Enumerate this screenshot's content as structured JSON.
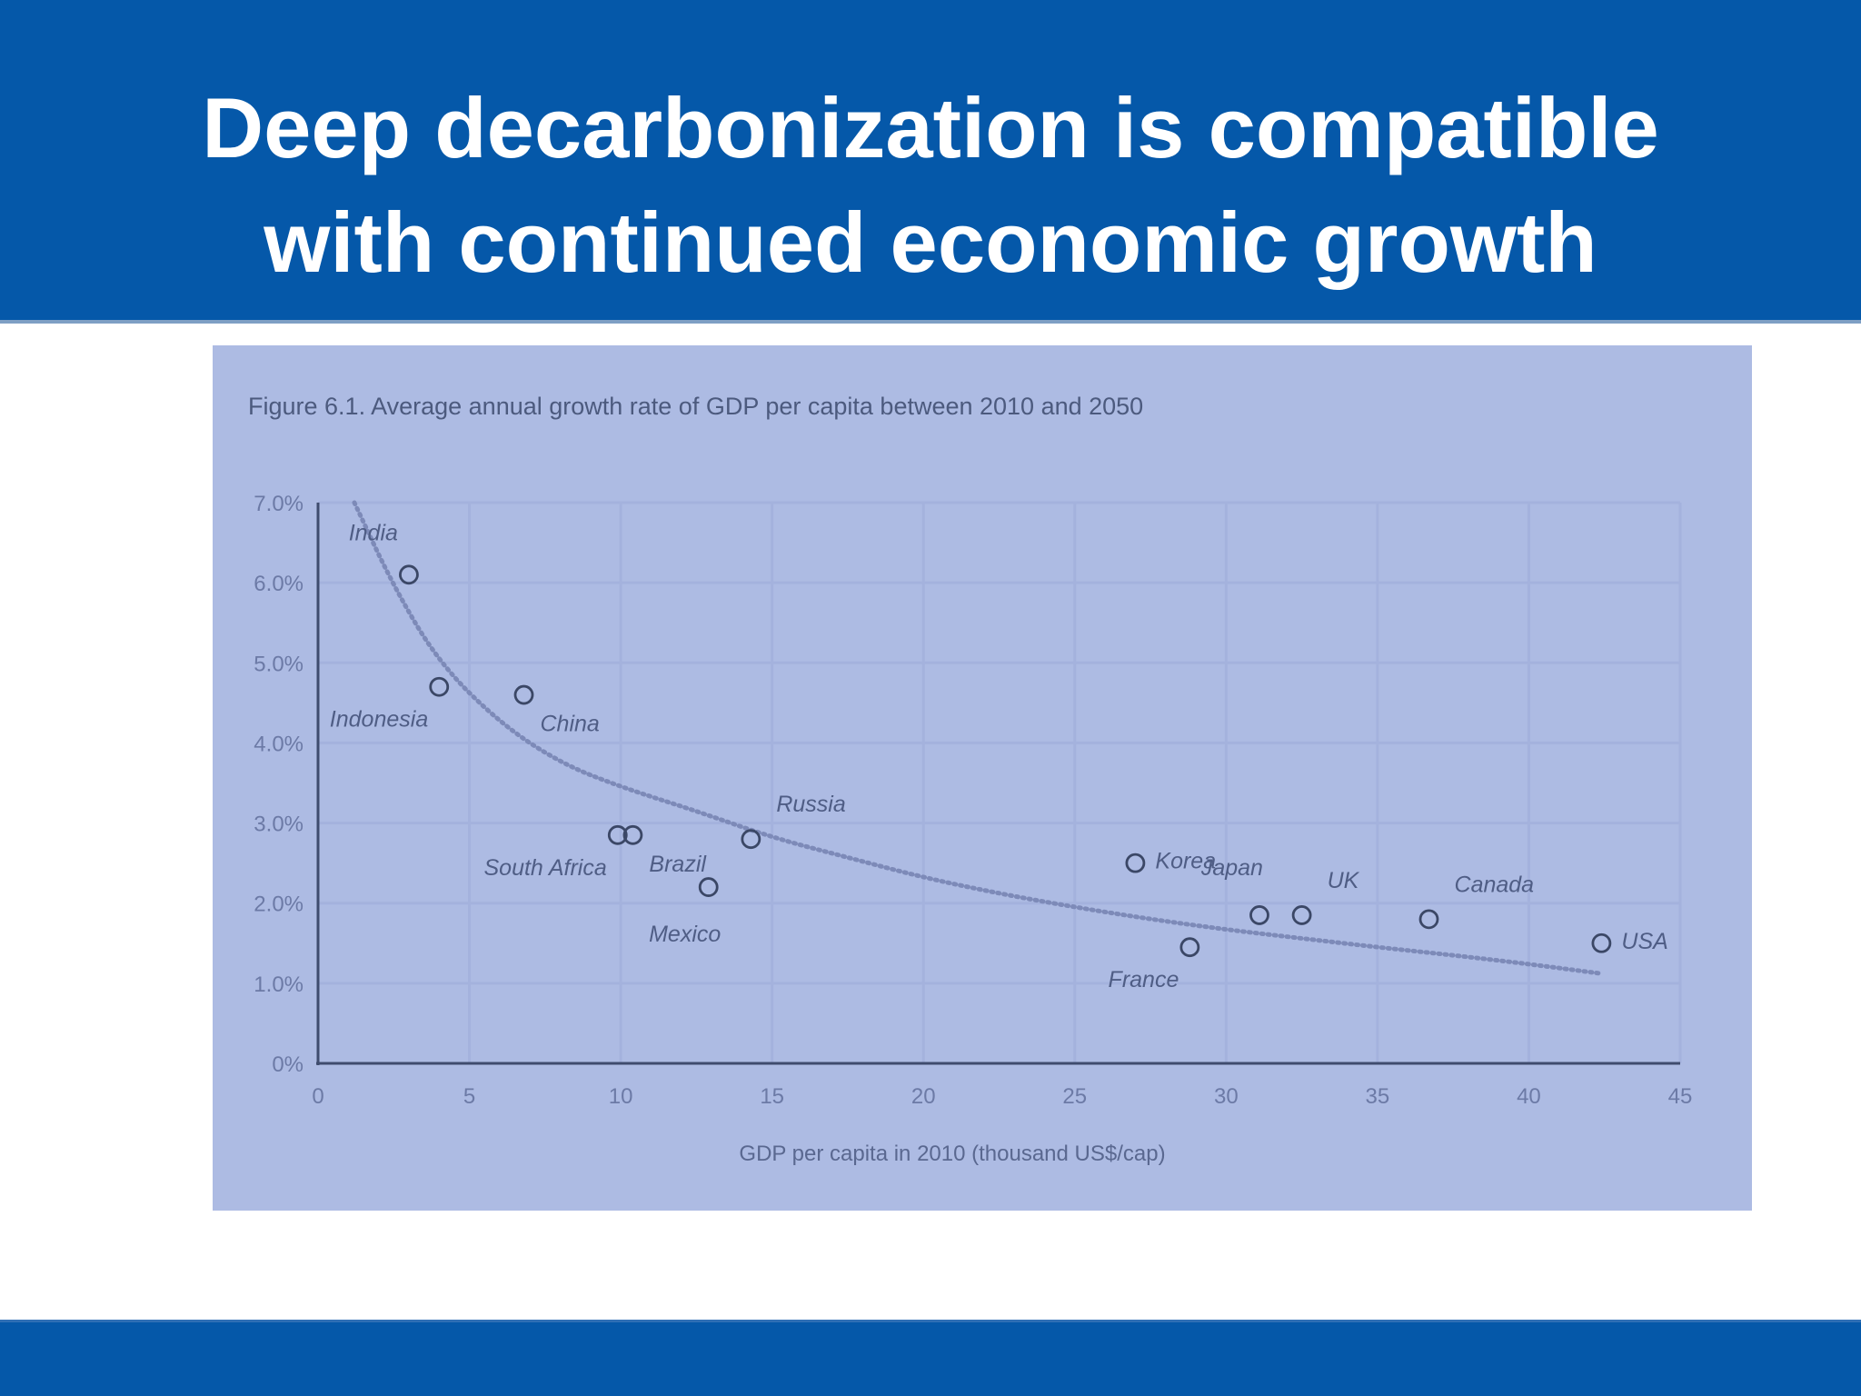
{
  "slide": {
    "title_line1": "Deep decarbonization is compatible",
    "title_line2": "with continued economic growth"
  },
  "colors": {
    "band": "#0558a9",
    "panel": "#adbbe3",
    "grid": "#a4b2dd",
    "axis": "#3f4c6e",
    "marker": "#3b4766",
    "trend": "#7d8ab8"
  },
  "chart_data": {
    "type": "scatter",
    "title": "Figure 6.1. Average annual growth rate of GDP per capita between 2010 and 2050",
    "xlabel": "GDP per capita in 2010 (thousand US$/cap)",
    "ylabel": "",
    "xlim": [
      0,
      45
    ],
    "ylim": [
      0,
      7
    ],
    "x_ticks": [
      "0",
      "5",
      "10",
      "15",
      "20",
      "25",
      "30",
      "35",
      "40",
      "45"
    ],
    "y_ticks": [
      "0%",
      "1.0%",
      "2.0%",
      "3.0%",
      "4.0%",
      "5.0%",
      "6.0%",
      "7.0%"
    ],
    "grid": true,
    "points": [
      {
        "label": "India",
        "x": 3.0,
        "y": 6.1,
        "label_pos": "above-left"
      },
      {
        "label": "Indonesia",
        "x": 4.0,
        "y": 4.7,
        "label_pos": "below-left"
      },
      {
        "label": "China",
        "x": 6.8,
        "y": 4.6,
        "label_pos": "below-right"
      },
      {
        "label": "South Africa",
        "x": 9.9,
        "y": 2.85,
        "label_pos": "below-left"
      },
      {
        "label": "Brazil",
        "x": 10.4,
        "y": 2.85,
        "label_pos": "below-right"
      },
      {
        "label": "Mexico",
        "x": 12.9,
        "y": 2.2,
        "label_pos": "below"
      },
      {
        "label": "Russia",
        "x": 14.3,
        "y": 2.8,
        "label_pos": "above-right"
      },
      {
        "label": "Korea",
        "x": 27.0,
        "y": 2.5,
        "label_pos": "right"
      },
      {
        "label": "France",
        "x": 28.8,
        "y": 1.45,
        "label_pos": "below-left"
      },
      {
        "label": "Japan",
        "x": 31.1,
        "y": 1.85,
        "label_pos": "above"
      },
      {
        "label": "UK",
        "x": 32.5,
        "y": 1.85,
        "label_pos": "above-right"
      },
      {
        "label": "Canada",
        "x": 36.7,
        "y": 1.8,
        "label_pos": "above-right"
      },
      {
        "label": "USA",
        "x": 42.4,
        "y": 1.5,
        "label_pos": "right"
      }
    ],
    "trendline": {
      "style": "dotted",
      "x": [
        1.2,
        2.5,
        4,
        6,
        8,
        10,
        12.5,
        15,
        17.5,
        20,
        22.5,
        25,
        27.5,
        30,
        32.5,
        35,
        37.5,
        40,
        42.4
      ],
      "y": [
        7.0,
        5.95,
        5.0,
        4.25,
        3.75,
        3.45,
        3.15,
        2.82,
        2.57,
        2.32,
        2.12,
        1.95,
        1.8,
        1.67,
        1.56,
        1.45,
        1.35,
        1.24,
        1.12
      ]
    }
  }
}
